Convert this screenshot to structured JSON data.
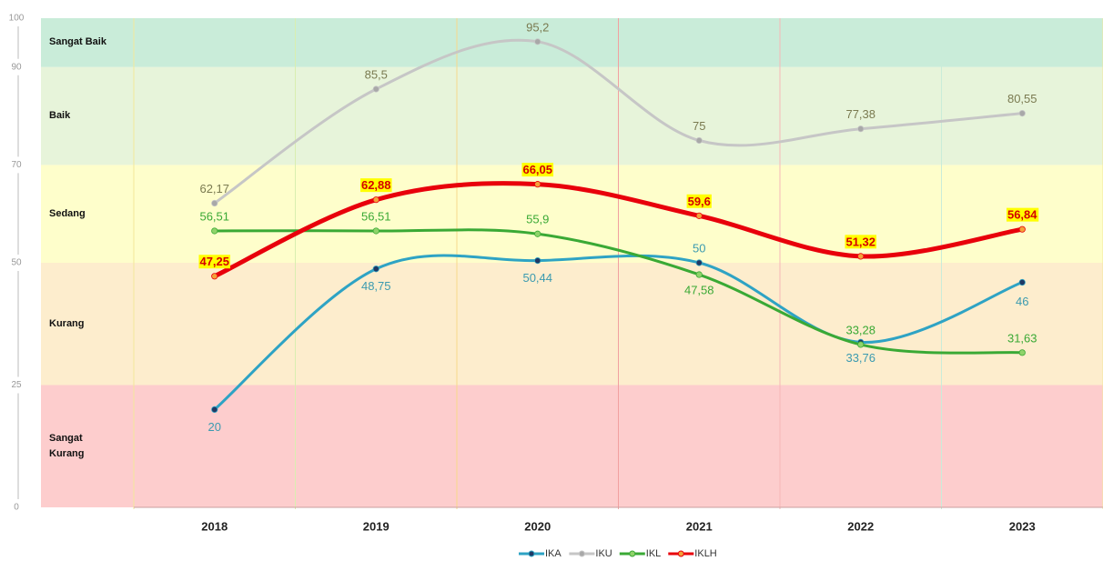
{
  "chart_data": {
    "type": "line",
    "categories": [
      "2018",
      "2019",
      "2020",
      "2021",
      "2022",
      "2023"
    ],
    "ylim": [
      0,
      100
    ],
    "yticks": [
      0,
      25,
      50,
      70,
      90,
      100
    ],
    "bands": [
      {
        "label": "Sangat Baik",
        "from": 90,
        "to": 100,
        "color": "#c9ecd9"
      },
      {
        "label": "Baik",
        "from": 70,
        "to": 90,
        "color": "#e7f4da"
      },
      {
        "label": "Sedang",
        "from": 50,
        "to": 70,
        "color": "#fefecb"
      },
      {
        "label": "Kurang",
        "from": 25,
        "to": 50,
        "color": "#fdedcd"
      },
      {
        "label": "Sangat Kurang",
        "from": 0,
        "to": 25,
        "color": "#fdcdcd"
      }
    ],
    "series": [
      {
        "name": "IKA",
        "color": "#2ea3c4",
        "marker": "#1f3864",
        "label_color": "#3b9ab0",
        "values": [
          20,
          48.75,
          50.44,
          50,
          33.76,
          46
        ],
        "value_labels": [
          "20",
          "48,75",
          "50,44",
          "50",
          "33,76",
          "46"
        ]
      },
      {
        "name": "IKU",
        "color": "#c6c6c6",
        "marker": "#a8a8a8",
        "label_color": "#7a7a50",
        "values": [
          62.17,
          85.5,
          95.2,
          75,
          77.38,
          80.55
        ],
        "value_labels": [
          "62,17",
          "85,5",
          "95,2",
          "75",
          "77,38",
          "80,55"
        ]
      },
      {
        "name": "IKL",
        "color": "#3aa935",
        "marker": "#8fd36a",
        "label_color": "#3aa935",
        "values": [
          56.51,
          56.51,
          55.9,
          47.58,
          33.28,
          31.63
        ],
        "value_labels": [
          "56,51",
          "56,51",
          "55,9",
          "47,58",
          "33,28",
          "31,63"
        ]
      },
      {
        "name": "IKLH",
        "color": "#e8000b",
        "marker": "#f3a23a",
        "label_color": "#d40000",
        "values": [
          47.25,
          62.88,
          66.05,
          59.6,
          51.32,
          56.84
        ],
        "value_labels": [
          "47,25",
          "62,88",
          "66,05",
          "59,6",
          "51,32",
          "56,84"
        ]
      }
    ]
  }
}
